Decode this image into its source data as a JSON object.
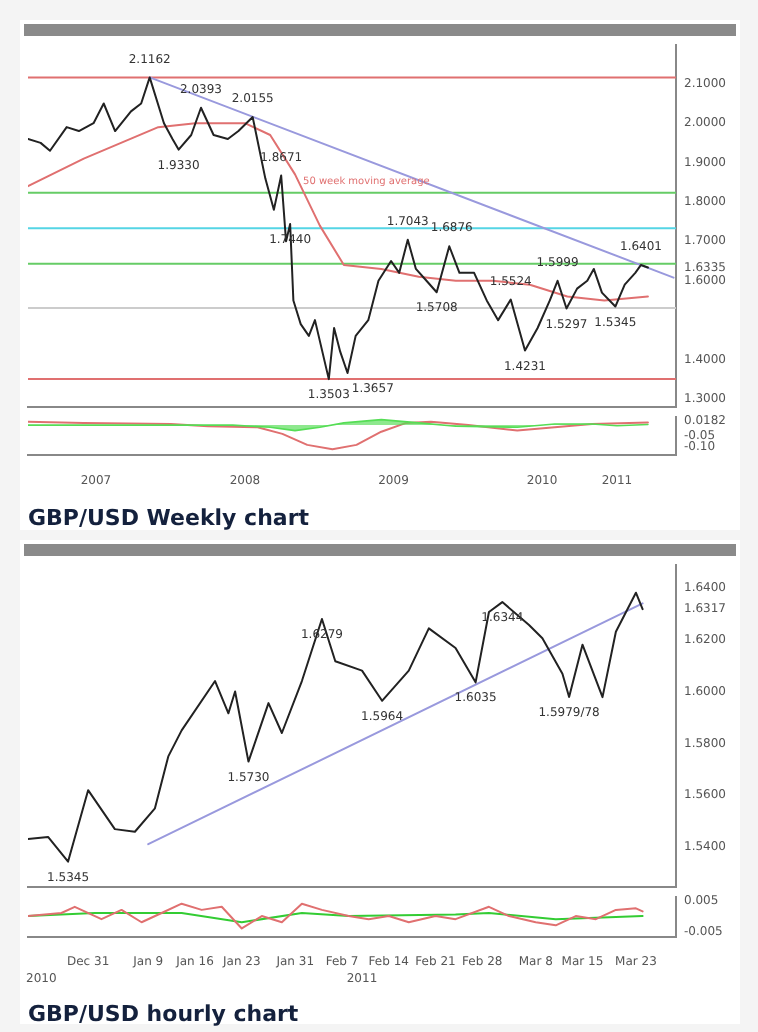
{
  "chart_data": [
    {
      "type": "line",
      "marker": "none",
      "tick_labels": "y",
      "xlim": [
        "2007-01-15",
        "2011-05-26"
      ],
      "ylim": [
        1.28,
        2.198
      ],
      "yticks": [
        {
          "value": 1.3,
          "label": "1.3000"
        },
        {
          "value": 1.4,
          "label": "1.4000"
        },
        {
          "value": 1.6,
          "label": "1.6000"
        },
        {
          "value": 1.6335,
          "label": "1.6335"
        },
        {
          "value": 1.7,
          "label": "1.7000"
        },
        {
          "value": 1.8,
          "label": "1.8000"
        },
        {
          "value": 1.9,
          "label": "1.9000"
        },
        {
          "value": 2.0,
          "label": "2.0000"
        },
        {
          "value": 2.1,
          "label": "2.1000"
        }
      ],
      "series": [
        {
          "type": "line",
          "color": "#222222",
          "x": [
            "2007-01-15",
            "2007-02-15",
            "2007-03-10",
            "2007-04-20",
            "2007-05-20",
            "2007-06-25",
            "2007-07-20",
            "2007-08-17",
            "2007-09-25",
            "2007-10-20",
            "2007-11-10",
            "2007-12-15",
            "2008-01-05",
            "2008-01-20",
            "2008-02-20",
            "2008-03-15",
            "2008-04-15",
            "2008-05-20",
            "2008-06-15",
            "2008-07-20",
            "2008-08-20",
            "2008-09-10",
            "2008-09-28",
            "2008-10-10",
            "2008-10-20",
            "2008-10-28",
            "2008-11-15",
            "2008-12-05",
            "2008-12-20",
            "2009-01-23",
            "2009-02-05",
            "2009-02-20",
            "2009-03-10",
            "2009-03-30",
            "2009-04-30",
            "2009-05-25",
            "2009-06-25",
            "2009-07-15",
            "2009-08-05",
            "2009-08-25",
            "2009-09-20",
            "2009-10-15",
            "2009-11-15",
            "2009-12-10",
            "2010-01-15",
            "2010-02-15",
            "2010-03-15",
            "2010-04-15",
            "2010-05-20",
            "2010-06-20",
            "2010-07-20",
            "2010-08-08",
            "2010-08-30",
            "2010-09-25",
            "2010-10-20",
            "2010-11-05",
            "2010-11-25",
            "2010-12-28",
            "2011-01-20",
            "2011-02-15",
            "2011-03-01",
            "2011-03-18"
          ],
          "values": [
            1.96,
            1.95,
            1.93,
            1.99,
            1.98,
            2.0,
            2.05,
            1.98,
            2.03,
            2.05,
            2.1162,
            2.0,
            1.96,
            1.933,
            1.97,
            2.0393,
            1.97,
            1.96,
            1.98,
            2.0155,
            1.86,
            1.78,
            1.8671,
            1.7,
            1.744,
            1.55,
            1.49,
            1.46,
            1.5,
            1.3503,
            1.48,
            1.42,
            1.3657,
            1.46,
            1.5,
            1.6,
            1.65,
            1.62,
            1.7043,
            1.63,
            1.6,
            1.5708,
            1.6876,
            1.62,
            1.62,
            1.55,
            1.5,
            1.5524,
            1.4231,
            1.48,
            1.55,
            1.5999,
            1.5297,
            1.58,
            1.6,
            1.63,
            1.57,
            1.5345,
            1.59,
            1.62,
            1.6401,
            1.6335
          ]
        },
        {
          "type": "line",
          "name": "50 week moving average",
          "color": "#e07070",
          "x": [
            "2007-01-15",
            "2007-06-01",
            "2007-12-01",
            "2008-03-01",
            "2008-07-01",
            "2008-09-01",
            "2008-11-01",
            "2009-01-01",
            "2009-03-01",
            "2009-06-01",
            "2009-09-01",
            "2009-12-01",
            "2010-03-01",
            "2010-06-01",
            "2010-09-01",
            "2010-12-01",
            "2011-03-18"
          ],
          "values": [
            1.84,
            1.91,
            1.99,
            2.0,
            2.0,
            1.97,
            1.87,
            1.74,
            1.64,
            1.63,
            1.61,
            1.6,
            1.6,
            1.59,
            1.56,
            1.55,
            1.56
          ]
        },
        {
          "type": "line",
          "color": "#9999dd",
          "x": [
            "2007-11-10",
            "2011-05-20"
          ],
          "values": [
            2.1162,
            1.608
          ]
        }
      ],
      "ref_lines": [
        {
          "axis": "y",
          "value": 2.1162,
          "color": "#e07070"
        },
        {
          "axis": "y",
          "value": 1.8236,
          "color": "#66cc66"
        },
        {
          "axis": "y",
          "value": 1.7333,
          "color": "#55d5e5"
        },
        {
          "axis": "y",
          "value": 1.6429,
          "color": "#66cc66"
        },
        {
          "axis": "y",
          "value": 1.531,
          "color": "#cccccc"
        },
        {
          "axis": "y",
          "value": 1.3503,
          "color": "#e07070"
        }
      ],
      "annotations": [
        {
          "text": "2.1162",
          "x": "2007-11-10",
          "y": 2.1162
        },
        {
          "text": "1.9330",
          "x": "2008-01-20",
          "y": 1.933
        },
        {
          "text": "2.0393",
          "x": "2008-03-15",
          "y": 2.0393
        },
        {
          "text": "2.0155",
          "x": "2008-07-20",
          "y": 2.0155
        },
        {
          "text": "1.8671",
          "x": "2008-09-28",
          "y": 1.8671
        },
        {
          "text": "1.7440",
          "x": "2008-10-20",
          "y": 1.744
        },
        {
          "text": "1.3503",
          "x": "2009-01-23",
          "y": 1.3503
        },
        {
          "text": "1.3657",
          "x": "2009-03-10",
          "y": 1.3657
        },
        {
          "text": "1.7043",
          "x": "2009-08-05",
          "y": 1.7043
        },
        {
          "text": "1.5708",
          "x": "2009-10-15",
          "y": 1.5708
        },
        {
          "text": "1.6876",
          "x": "2009-11-15",
          "y": 1.6876
        },
        {
          "text": "1.5524",
          "x": "2010-04-15",
          "y": 1.5524
        },
        {
          "text": "1.4231",
          "x": "2010-05-20",
          "y": 1.4231
        },
        {
          "text": "1.5999",
          "x": "2010-08-08",
          "y": 1.5999
        },
        {
          "text": "1.5297",
          "x": "2010-08-30",
          "y": 1.5297
        },
        {
          "text": "1.5345",
          "x": "2010-12-28",
          "y": 1.5345
        },
        {
          "text": "1.6401",
          "x": "2011-03-01",
          "y": 1.6401
        }
      ]
    },
    {
      "type": "line",
      "marker": "none",
      "title": "GBP/USD Weekly chart",
      "xlim": [
        "2007-01-15",
        "2011-05-26"
      ],
      "ylim": [
        -0.137,
        0.036
      ],
      "xticks": [
        {
          "value": "2007-07",
          "label": "2007"
        },
        {
          "value": "2008-07",
          "label": "2008"
        },
        {
          "value": "2009-07",
          "label": "2009"
        },
        {
          "value": "2010-07",
          "label": "2010"
        },
        {
          "value": "2011-01",
          "label": "2011"
        }
      ],
      "yticks": [
        {
          "value": -0.1,
          "label": "-0.10"
        },
        -0.05,
        0.0182
      ],
      "series": [
        {
          "type": "area",
          "color": "#55dd55",
          "x": [
            "2007-01-15",
            "2008-06-01",
            "2008-09-01",
            "2008-11-01",
            "2009-01-01",
            "2009-03-01",
            "2009-06-01",
            "2009-09-01",
            "2009-12-01",
            "2010-05-01",
            "2010-08-01",
            "2010-11-01",
            "2011-01-01",
            "2011-03-18"
          ],
          "values": [
            0,
            0,
            -0.01,
            -0.025,
            -0.01,
            0.01,
            0.025,
            0.01,
            -0.005,
            -0.01,
            0.005,
            0.005,
            -0.003,
            0.003
          ]
        },
        {
          "type": "line",
          "color": "#e07070",
          "x": [
            "2007-01-15",
            "2007-06-01",
            "2008-01-01",
            "2008-04-01",
            "2008-08-01",
            "2008-10-01",
            "2008-12-01",
            "2009-02-01",
            "2009-04-01",
            "2009-06-01",
            "2009-08-01",
            "2009-10-01",
            "2010-01-01",
            "2010-05-01",
            "2010-08-01",
            "2010-11-01",
            "2011-03-18"
          ],
          "values": [
            0.015,
            0.01,
            0.005,
            -0.005,
            -0.01,
            -0.04,
            -0.09,
            -0.11,
            -0.09,
            -0.03,
            0.01,
            0.015,
            0,
            -0.025,
            -0.01,
            0.005,
            0.012
          ]
        }
      ]
    },
    {
      "type": "line",
      "marker": "none",
      "tick_labels": "y",
      "xlim": [
        "2010-12-22",
        "2011-03-29"
      ],
      "ylim": [
        1.5248,
        1.6486
      ],
      "yticks": [
        {
          "value": 1.54,
          "label": "1.5400"
        },
        {
          "value": 1.56,
          "label": "1.5600"
        },
        {
          "value": 1.58,
          "label": "1.5800"
        },
        {
          "value": 1.6,
          "label": "1.6000"
        },
        {
          "value": 1.62,
          "label": "1.6200"
        },
        {
          "value": 1.6317,
          "label": "1.6317"
        },
        {
          "value": 1.64,
          "label": "1.6400"
        }
      ],
      "series": [
        {
          "type": "line",
          "color": "#222222",
          "x": [
            "2010-12-22",
            "2010-12-25",
            "2010-12-28",
            "2010-12-31",
            "2011-01-04",
            "2011-01-07",
            "2011-01-10",
            "2011-01-12",
            "2011-01-14",
            "2011-01-19",
            "2011-01-21",
            "2011-01-22",
            "2011-01-24",
            "2011-01-27",
            "2011-01-29",
            "2011-02-01",
            "2011-02-04",
            "2011-02-06",
            "2011-02-10",
            "2011-02-13",
            "2011-02-17",
            "2011-02-20",
            "2011-02-24",
            "2011-02-27",
            "2011-03-01",
            "2011-03-03",
            "2011-03-07",
            "2011-03-09",
            "2011-03-12",
            "2011-03-13",
            "2011-03-15",
            "2011-03-18",
            "2011-03-20",
            "2011-03-23",
            "2011-03-24"
          ],
          "values": [
            1.5432,
            1.544,
            1.5345,
            1.562,
            1.547,
            1.546,
            1.555,
            1.575,
            1.585,
            1.604,
            1.5916,
            1.6,
            1.573,
            1.5955,
            1.584,
            1.604,
            1.6279,
            1.6116,
            1.608,
            1.5964,
            1.608,
            1.6243,
            1.6167,
            1.6035,
            1.6306,
            1.6344,
            1.6256,
            1.6205,
            1.6068,
            1.5979,
            1.618,
            1.5978,
            1.623,
            1.638,
            1.6317
          ]
        },
        {
          "type": "line",
          "color": "#9999dd",
          "x": [
            "2011-01-09",
            "2011-03-24"
          ],
          "values": [
            1.5412,
            1.6339
          ]
        }
      ],
      "annotations": [
        {
          "text": "1.5345",
          "x": "2010-12-28",
          "y": 1.5345
        },
        {
          "text": "1.5730",
          "x": "2011-01-24",
          "y": 1.573
        },
        {
          "text": "1.6279",
          "x": "2011-02-04",
          "y": 1.6279
        },
        {
          "text": "1.5964",
          "x": "2011-02-13",
          "y": 1.5964
        },
        {
          "text": "1.6035",
          "x": "2011-02-27",
          "y": 1.6035
        },
        {
          "text": "1.6344",
          "x": "2011-03-03",
          "y": 1.6344
        },
        {
          "text": "1.5979/78",
          "x": "2011-03-13",
          "y": 1.5979
        }
      ]
    },
    {
      "type": "line",
      "marker": "none",
      "title": "GBP/USD hourly chart",
      "xlim": [
        "2010-12-22",
        "2011-03-29"
      ],
      "ylim": [
        -0.0067,
        0.0061
      ],
      "xticks": [
        {
          "value": "2010-12-31",
          "label": "Dec 31"
        },
        {
          "value": "2011-01-09",
          "label": "Jan 9"
        },
        {
          "value": "2011-01-16",
          "label": "Jan 16"
        },
        {
          "value": "2011-01-23",
          "label": "Jan 23"
        },
        {
          "value": "2011-01-31",
          "label": "Jan 31"
        },
        {
          "value": "2011-02-07",
          "label": "Feb 7"
        },
        {
          "value": "2011-02-14",
          "label": "Feb 14"
        },
        {
          "value": "2011-02-21",
          "label": "Feb 21"
        },
        {
          "value": "2011-02-28",
          "label": "Feb 28"
        },
        {
          "value": "2011-03-08",
          "label": "Mar 8"
        },
        {
          "value": "2011-03-15",
          "label": "Mar 15"
        },
        {
          "value": "2011-03-23",
          "label": "Mar 23"
        }
      ],
      "yticks": [
        -0.005,
        0.005
      ],
      "x2lim": [
        "2010-12-22",
        "2011-03-29"
      ],
      "x2ticks": [
        {
          "value": "2010-12-24",
          "label": "2010"
        },
        {
          "value": "2011-02-10",
          "label": "2011"
        }
      ],
      "series": [
        {
          "type": "line",
          "color": "#e07070",
          "x": [
            "2010-12-22",
            "2010-12-27",
            "2010-12-29",
            "2011-01-02",
            "2011-01-05",
            "2011-01-08",
            "2011-01-11",
            "2011-01-14",
            "2011-01-17",
            "2011-01-20",
            "2011-01-23",
            "2011-01-26",
            "2011-01-29",
            "2011-02-01",
            "2011-02-04",
            "2011-02-08",
            "2011-02-11",
            "2011-02-14",
            "2011-02-17",
            "2011-02-21",
            "2011-02-24",
            "2011-03-01",
            "2011-03-04",
            "2011-03-08",
            "2011-03-11",
            "2011-03-14",
            "2011-03-17",
            "2011-03-20",
            "2011-03-23",
            "2011-03-24"
          ],
          "values": [
            0,
            0.001,
            0.003,
            -0.001,
            0.002,
            -0.002,
            0.001,
            0.004,
            0.002,
            0.003,
            -0.004,
            0,
            -0.002,
            0.004,
            0.002,
            0,
            -0.001,
            0,
            -0.002,
            0,
            -0.001,
            0.003,
            0,
            -0.002,
            -0.003,
            0,
            -0.001,
            0.002,
            0.0025,
            0.0015
          ]
        },
        {
          "type": "line",
          "color": "#33cc33",
          "x": [
            "2010-12-22",
            "2011-01-01",
            "2011-01-14",
            "2011-01-23",
            "2011-02-01",
            "2011-02-08",
            "2011-02-24",
            "2011-03-01",
            "2011-03-11",
            "2011-03-24"
          ],
          "values": [
            0,
            0.001,
            0.001,
            -0.002,
            0.001,
            0,
            0.0005,
            0.001,
            -0.001,
            0
          ]
        }
      ]
    }
  ]
}
